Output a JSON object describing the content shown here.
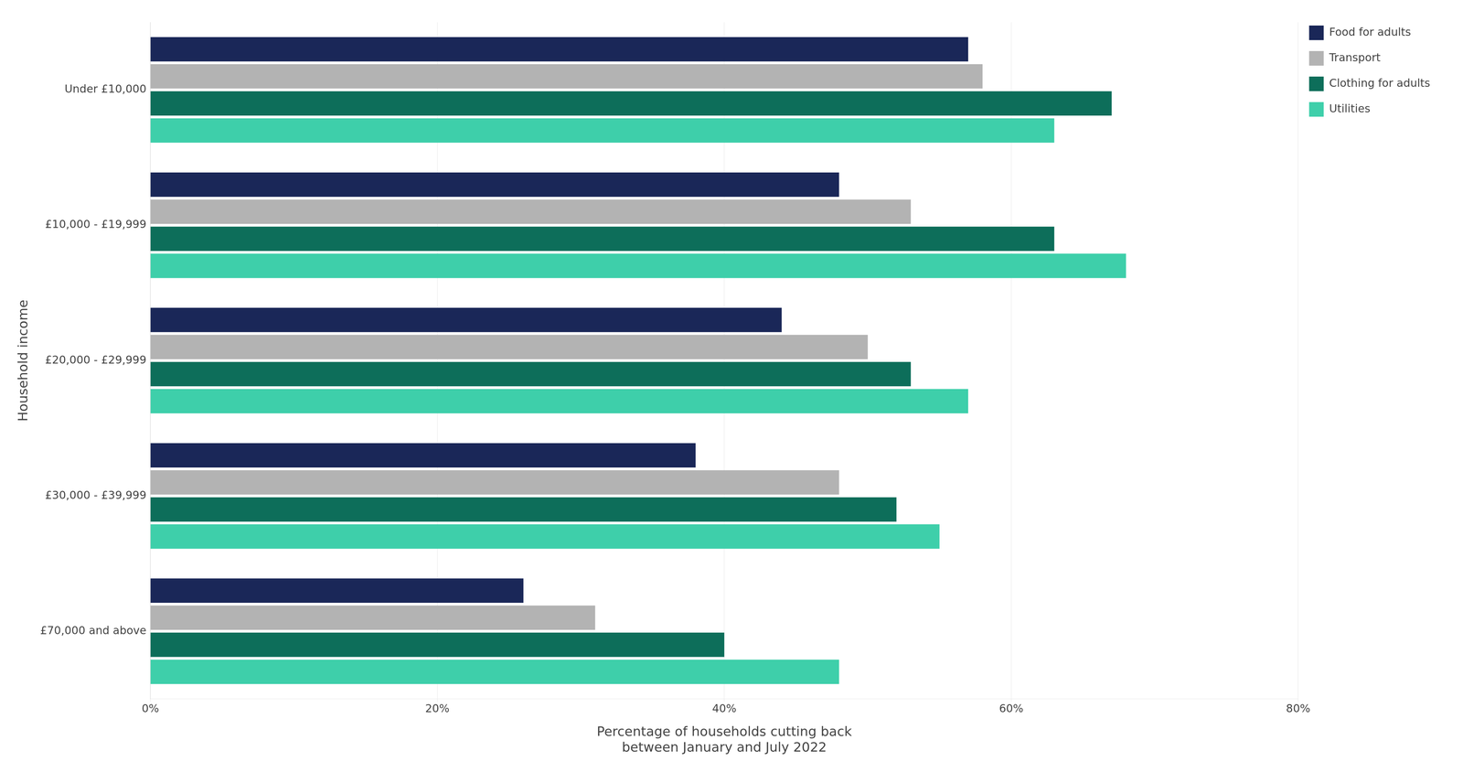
{
  "chart_data": {
    "type": "bar",
    "orientation": "horizontal",
    "categories": [
      "Under £10,000",
      "£10,000 - £19,999",
      "£20,000 - £29,999",
      "£30,000 - £39,999",
      "£70,000 and above"
    ],
    "series": [
      {
        "name": "Food for adults",
        "color": "#1a2758",
        "values": [
          57,
          48,
          44,
          38,
          26
        ]
      },
      {
        "name": "Transport",
        "color": "#b3b3b3",
        "values": [
          58,
          53,
          50,
          48,
          31
        ]
      },
      {
        "name": "Clothing for adults",
        "color": "#0d6e5a",
        "values": [
          67,
          63,
          53,
          52,
          40
        ]
      },
      {
        "name": "Utilities",
        "color": "#3ecfaa",
        "values": [
          63,
          68,
          57,
          55,
          48
        ]
      }
    ],
    "xlabel": "Percentage of households cutting back\nbetween January and July 2022",
    "ylabel": "Household income",
    "xlim": [
      0,
      80
    ],
    "xticks": [
      {
        "value": 0,
        "label": "0%"
      },
      {
        "value": 20,
        "label": "20%"
      },
      {
        "value": 40,
        "label": "40%"
      },
      {
        "value": 60,
        "label": "60%"
      },
      {
        "value": 80,
        "label": "80%"
      }
    ],
    "grid": true,
    "legend": "upper right"
  }
}
